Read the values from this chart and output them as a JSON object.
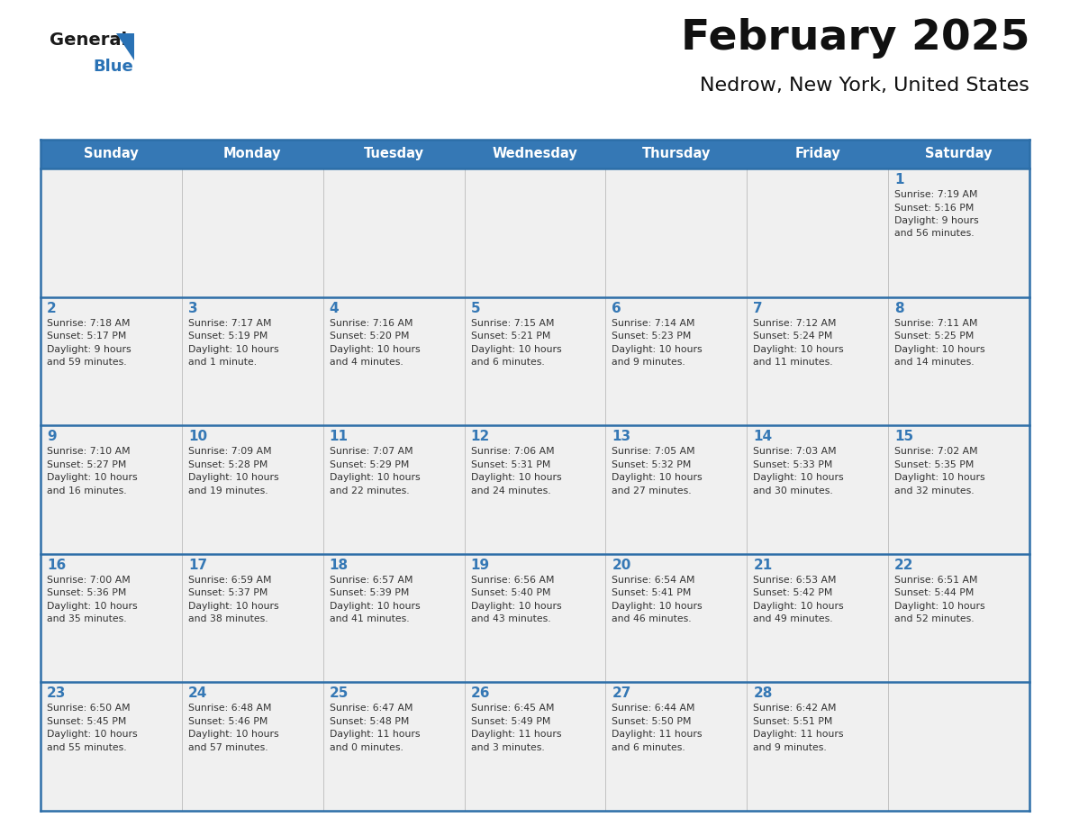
{
  "title": "February 2025",
  "subtitle": "Nedrow, New York, United States",
  "header_bg": "#3578b5",
  "header_text_color": "#ffffff",
  "cell_bg": "#f0f0f0",
  "cell_bg_white": "#ffffff",
  "day_number_color": "#3578b5",
  "info_text_color": "#333333",
  "border_color": "#2d6ea8",
  "days_of_week": [
    "Sunday",
    "Monday",
    "Tuesday",
    "Wednesday",
    "Thursday",
    "Friday",
    "Saturday"
  ],
  "calendar_data": [
    [
      null,
      null,
      null,
      null,
      null,
      null,
      {
        "day": 1,
        "sunrise": "7:19 AM",
        "sunset": "5:16 PM",
        "daylight_line1": "9 hours",
        "daylight_line2": "and 56 minutes."
      }
    ],
    [
      {
        "day": 2,
        "sunrise": "7:18 AM",
        "sunset": "5:17 PM",
        "daylight_line1": "9 hours",
        "daylight_line2": "and 59 minutes."
      },
      {
        "day": 3,
        "sunrise": "7:17 AM",
        "sunset": "5:19 PM",
        "daylight_line1": "10 hours",
        "daylight_line2": "and 1 minute."
      },
      {
        "day": 4,
        "sunrise": "7:16 AM",
        "sunset": "5:20 PM",
        "daylight_line1": "10 hours",
        "daylight_line2": "and 4 minutes."
      },
      {
        "day": 5,
        "sunrise": "7:15 AM",
        "sunset": "5:21 PM",
        "daylight_line1": "10 hours",
        "daylight_line2": "and 6 minutes."
      },
      {
        "day": 6,
        "sunrise": "7:14 AM",
        "sunset": "5:23 PM",
        "daylight_line1": "10 hours",
        "daylight_line2": "and 9 minutes."
      },
      {
        "day": 7,
        "sunrise": "7:12 AM",
        "sunset": "5:24 PM",
        "daylight_line1": "10 hours",
        "daylight_line2": "and 11 minutes."
      },
      {
        "day": 8,
        "sunrise": "7:11 AM",
        "sunset": "5:25 PM",
        "daylight_line1": "10 hours",
        "daylight_line2": "and 14 minutes."
      }
    ],
    [
      {
        "day": 9,
        "sunrise": "7:10 AM",
        "sunset": "5:27 PM",
        "daylight_line1": "10 hours",
        "daylight_line2": "and 16 minutes."
      },
      {
        "day": 10,
        "sunrise": "7:09 AM",
        "sunset": "5:28 PM",
        "daylight_line1": "10 hours",
        "daylight_line2": "and 19 minutes."
      },
      {
        "day": 11,
        "sunrise": "7:07 AM",
        "sunset": "5:29 PM",
        "daylight_line1": "10 hours",
        "daylight_line2": "and 22 minutes."
      },
      {
        "day": 12,
        "sunrise": "7:06 AM",
        "sunset": "5:31 PM",
        "daylight_line1": "10 hours",
        "daylight_line2": "and 24 minutes."
      },
      {
        "day": 13,
        "sunrise": "7:05 AM",
        "sunset": "5:32 PM",
        "daylight_line1": "10 hours",
        "daylight_line2": "and 27 minutes."
      },
      {
        "day": 14,
        "sunrise": "7:03 AM",
        "sunset": "5:33 PM",
        "daylight_line1": "10 hours",
        "daylight_line2": "and 30 minutes."
      },
      {
        "day": 15,
        "sunrise": "7:02 AM",
        "sunset": "5:35 PM",
        "daylight_line1": "10 hours",
        "daylight_line2": "and 32 minutes."
      }
    ],
    [
      {
        "day": 16,
        "sunrise": "7:00 AM",
        "sunset": "5:36 PM",
        "daylight_line1": "10 hours",
        "daylight_line2": "and 35 minutes."
      },
      {
        "day": 17,
        "sunrise": "6:59 AM",
        "sunset": "5:37 PM",
        "daylight_line1": "10 hours",
        "daylight_line2": "and 38 minutes."
      },
      {
        "day": 18,
        "sunrise": "6:57 AM",
        "sunset": "5:39 PM",
        "daylight_line1": "10 hours",
        "daylight_line2": "and 41 minutes."
      },
      {
        "day": 19,
        "sunrise": "6:56 AM",
        "sunset": "5:40 PM",
        "daylight_line1": "10 hours",
        "daylight_line2": "and 43 minutes."
      },
      {
        "day": 20,
        "sunrise": "6:54 AM",
        "sunset": "5:41 PM",
        "daylight_line1": "10 hours",
        "daylight_line2": "and 46 minutes."
      },
      {
        "day": 21,
        "sunrise": "6:53 AM",
        "sunset": "5:42 PM",
        "daylight_line1": "10 hours",
        "daylight_line2": "and 49 minutes."
      },
      {
        "day": 22,
        "sunrise": "6:51 AM",
        "sunset": "5:44 PM",
        "daylight_line1": "10 hours",
        "daylight_line2": "and 52 minutes."
      }
    ],
    [
      {
        "day": 23,
        "sunrise": "6:50 AM",
        "sunset": "5:45 PM",
        "daylight_line1": "10 hours",
        "daylight_line2": "and 55 minutes."
      },
      {
        "day": 24,
        "sunrise": "6:48 AM",
        "sunset": "5:46 PM",
        "daylight_line1": "10 hours",
        "daylight_line2": "and 57 minutes."
      },
      {
        "day": 25,
        "sunrise": "6:47 AM",
        "sunset": "5:48 PM",
        "daylight_line1": "11 hours",
        "daylight_line2": "and 0 minutes."
      },
      {
        "day": 26,
        "sunrise": "6:45 AM",
        "sunset": "5:49 PM",
        "daylight_line1": "11 hours",
        "daylight_line2": "and 3 minutes."
      },
      {
        "day": 27,
        "sunrise": "6:44 AM",
        "sunset": "5:50 PM",
        "daylight_line1": "11 hours",
        "daylight_line2": "and 6 minutes."
      },
      {
        "day": 28,
        "sunrise": "6:42 AM",
        "sunset": "5:51 PM",
        "daylight_line1": "11 hours",
        "daylight_line2": "and 9 minutes."
      },
      null
    ]
  ],
  "logo_general_color": "#1a1a1a",
  "logo_blue_color": "#2a72b5",
  "logo_triangle_color": "#2a72b5"
}
